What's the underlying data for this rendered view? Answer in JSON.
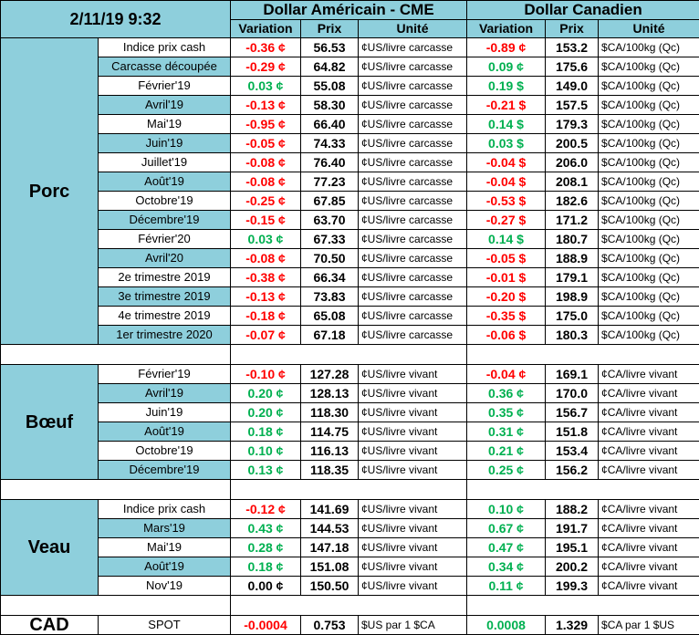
{
  "header": {
    "datetime": "2/11/19 9:32",
    "usd_title": "Dollar Américain - CME",
    "cad_title": "Dollar Canadien",
    "col_variation": "Variation",
    "col_prix": "Prix",
    "col_unite": "Unité"
  },
  "groups": [
    {
      "name": "Porc",
      "rows": [
        {
          "label": "Indice prix cash",
          "usd_var": "-0.36 ¢",
          "usd_var_color": "red",
          "usd_prix": "56.53",
          "usd_unit": "¢US/livre carcasse",
          "cad_var": "-0.89 ¢",
          "cad_var_color": "red",
          "cad_prix": "153.2",
          "cad_unit": "$CA/100kg (Qc)"
        },
        {
          "label": "Carcasse découpée",
          "usd_var": "-0.29 ¢",
          "usd_var_color": "red",
          "usd_prix": "64.82",
          "usd_unit": "¢US/livre carcasse",
          "cad_var": "0.09 ¢",
          "cad_var_color": "green",
          "cad_prix": "175.6",
          "cad_unit": "$CA/100kg (Qc)"
        },
        {
          "label": "Février'19",
          "usd_var": "0.03 ¢",
          "usd_var_color": "green",
          "usd_prix": "55.08",
          "usd_unit": "¢US/livre carcasse",
          "cad_var": "0.19 $",
          "cad_var_color": "green",
          "cad_prix": "149.0",
          "cad_unit": "$CA/100kg (Qc)"
        },
        {
          "label": "Avril'19",
          "usd_var": "-0.13 ¢",
          "usd_var_color": "red",
          "usd_prix": "58.30",
          "usd_unit": "¢US/livre carcasse",
          "cad_var": "-0.21 $",
          "cad_var_color": "red",
          "cad_prix": "157.5",
          "cad_unit": "$CA/100kg (Qc)"
        },
        {
          "label": "Mai'19",
          "usd_var": "-0.95 ¢",
          "usd_var_color": "red",
          "usd_prix": "66.40",
          "usd_unit": "¢US/livre carcasse",
          "cad_var": "0.14 $",
          "cad_var_color": "green",
          "cad_prix": "179.3",
          "cad_unit": "$CA/100kg (Qc)"
        },
        {
          "label": "Juin'19",
          "usd_var": "-0.05 ¢",
          "usd_var_color": "red",
          "usd_prix": "74.33",
          "usd_unit": "¢US/livre carcasse",
          "cad_var": "0.03 $",
          "cad_var_color": "green",
          "cad_prix": "200.5",
          "cad_unit": "$CA/100kg (Qc)"
        },
        {
          "label": "Juillet'19",
          "usd_var": "-0.08 ¢",
          "usd_var_color": "red",
          "usd_prix": "76.40",
          "usd_unit": "¢US/livre carcasse",
          "cad_var": "-0.04 $",
          "cad_var_color": "red",
          "cad_prix": "206.0",
          "cad_unit": "$CA/100kg (Qc)"
        },
        {
          "label": "Août'19",
          "usd_var": "-0.08 ¢",
          "usd_var_color": "red",
          "usd_prix": "77.23",
          "usd_unit": "¢US/livre carcasse",
          "cad_var": "-0.04 $",
          "cad_var_color": "red",
          "cad_prix": "208.1",
          "cad_unit": "$CA/100kg (Qc)"
        },
        {
          "label": "Octobre'19",
          "usd_var": "-0.25 ¢",
          "usd_var_color": "red",
          "usd_prix": "67.85",
          "usd_unit": "¢US/livre carcasse",
          "cad_var": "-0.53 $",
          "cad_var_color": "red",
          "cad_prix": "182.6",
          "cad_unit": "$CA/100kg (Qc)"
        },
        {
          "label": "Décembre'19",
          "usd_var": "-0.15 ¢",
          "usd_var_color": "red",
          "usd_prix": "63.70",
          "usd_unit": "¢US/livre carcasse",
          "cad_var": "-0.27 $",
          "cad_var_color": "red",
          "cad_prix": "171.2",
          "cad_unit": "$CA/100kg (Qc)"
        },
        {
          "label": "Février'20",
          "usd_var": "0.03 ¢",
          "usd_var_color": "green",
          "usd_prix": "67.33",
          "usd_unit": "¢US/livre carcasse",
          "cad_var": "0.14 $",
          "cad_var_color": "green",
          "cad_prix": "180.7",
          "cad_unit": "$CA/100kg (Qc)"
        },
        {
          "label": "Avril'20",
          "usd_var": "-0.08 ¢",
          "usd_var_color": "red",
          "usd_prix": "70.50",
          "usd_unit": "¢US/livre carcasse",
          "cad_var": "-0.05 $",
          "cad_var_color": "red",
          "cad_prix": "188.9",
          "cad_unit": "$CA/100kg (Qc)"
        },
        {
          "label": "2e trimestre 2019",
          "usd_var": "-0.38 ¢",
          "usd_var_color": "red",
          "usd_prix": "66.34",
          "usd_unit": "¢US/livre carcasse",
          "cad_var": "-0.01 $",
          "cad_var_color": "red",
          "cad_prix": "179.1",
          "cad_unit": "$CA/100kg (Qc)"
        },
        {
          "label": "3e trimestre 2019",
          "usd_var": "-0.13 ¢",
          "usd_var_color": "red",
          "usd_prix": "73.83",
          "usd_unit": "¢US/livre carcasse",
          "cad_var": "-0.20 $",
          "cad_var_color": "red",
          "cad_prix": "198.9",
          "cad_unit": "$CA/100kg (Qc)"
        },
        {
          "label": "4e trimestre 2019",
          "usd_var": "-0.18 ¢",
          "usd_var_color": "red",
          "usd_prix": "65.08",
          "usd_unit": "¢US/livre carcasse",
          "cad_var": "-0.35 $",
          "cad_var_color": "red",
          "cad_prix": "175.0",
          "cad_unit": "$CA/100kg (Qc)"
        },
        {
          "label": "1er trimestre 2020",
          "usd_var": "-0.07 ¢",
          "usd_var_color": "red",
          "usd_prix": "67.18",
          "usd_unit": "¢US/livre carcasse",
          "cad_var": "-0.06 $",
          "cad_var_color": "red",
          "cad_prix": "180.3",
          "cad_unit": "$CA/100kg (Qc)"
        }
      ]
    },
    {
      "name": "Bœuf",
      "rows": [
        {
          "label": "Février'19",
          "usd_var": "-0.10 ¢",
          "usd_var_color": "red",
          "usd_prix": "127.28",
          "usd_unit": "¢US/livre vivant",
          "cad_var": "-0.04 ¢",
          "cad_var_color": "red",
          "cad_prix": "169.1",
          "cad_unit": "¢CA/livre vivant"
        },
        {
          "label": "Avril'19",
          "usd_var": "0.20 ¢",
          "usd_var_color": "green",
          "usd_prix": "128.13",
          "usd_unit": "¢US/livre vivant",
          "cad_var": "0.36 ¢",
          "cad_var_color": "green",
          "cad_prix": "170.0",
          "cad_unit": "¢CA/livre vivant"
        },
        {
          "label": "Juin'19",
          "usd_var": "0.20 ¢",
          "usd_var_color": "green",
          "usd_prix": "118.30",
          "usd_unit": "¢US/livre vivant",
          "cad_var": "0.35 ¢",
          "cad_var_color": "green",
          "cad_prix": "156.7",
          "cad_unit": "¢CA/livre vivant"
        },
        {
          "label": "Août'19",
          "usd_var": "0.18 ¢",
          "usd_var_color": "green",
          "usd_prix": "114.75",
          "usd_unit": "¢US/livre vivant",
          "cad_var": "0.31 ¢",
          "cad_var_color": "green",
          "cad_prix": "151.8",
          "cad_unit": "¢CA/livre vivant"
        },
        {
          "label": "Octobre'19",
          "usd_var": "0.10 ¢",
          "usd_var_color": "green",
          "usd_prix": "116.13",
          "usd_unit": "¢US/livre vivant",
          "cad_var": "0.21 ¢",
          "cad_var_color": "green",
          "cad_prix": "153.4",
          "cad_unit": "¢CA/livre vivant"
        },
        {
          "label": "Décembre'19",
          "usd_var": "0.13 ¢",
          "usd_var_color": "green",
          "usd_prix": "118.35",
          "usd_unit": "¢US/livre vivant",
          "cad_var": "0.25 ¢",
          "cad_var_color": "green",
          "cad_prix": "156.2",
          "cad_unit": "¢CA/livre vivant"
        }
      ]
    },
    {
      "name": "Veau",
      "rows": [
        {
          "label": "Indice prix cash",
          "usd_var": "-0.12 ¢",
          "usd_var_color": "red",
          "usd_prix": "141.69",
          "usd_unit": "¢US/livre vivant",
          "cad_var": "0.10 ¢",
          "cad_var_color": "green",
          "cad_prix": "188.2",
          "cad_unit": "¢CA/livre vivant"
        },
        {
          "label": "Mars'19",
          "usd_var": "0.43 ¢",
          "usd_var_color": "green",
          "usd_prix": "144.53",
          "usd_unit": "¢US/livre vivant",
          "cad_var": "0.67 ¢",
          "cad_var_color": "green",
          "cad_prix": "191.7",
          "cad_unit": "¢CA/livre vivant"
        },
        {
          "label": "Mai'19",
          "usd_var": "0.28 ¢",
          "usd_var_color": "green",
          "usd_prix": "147.18",
          "usd_unit": "¢US/livre vivant",
          "cad_var": "0.47 ¢",
          "cad_var_color": "green",
          "cad_prix": "195.1",
          "cad_unit": "¢CA/livre vivant"
        },
        {
          "label": "Août'19",
          "usd_var": "0.18 ¢",
          "usd_var_color": "green",
          "usd_prix": "151.08",
          "usd_unit": "¢US/livre vivant",
          "cad_var": "0.34 ¢",
          "cad_var_color": "green",
          "cad_prix": "200.2",
          "cad_unit": "¢CA/livre vivant"
        },
        {
          "label": "Nov'19",
          "usd_var": "0.00 ¢",
          "usd_var_color": "black",
          "usd_prix": "150.50",
          "usd_unit": "¢US/livre vivant",
          "cad_var": "0.11 ¢",
          "cad_var_color": "green",
          "cad_prix": "199.3",
          "cad_unit": "¢CA/livre vivant"
        }
      ]
    }
  ],
  "cad": {
    "name": "CAD",
    "label": "SPOT",
    "usd_var": "-0.0004",
    "usd_var_color": "red",
    "usd_prix": "0.753",
    "usd_unit": "$US par 1 $CA",
    "cad_var": "0.0008",
    "cad_var_color": "green",
    "cad_prix": "1.329",
    "cad_unit": "$CA par 1 $US"
  },
  "colors": {
    "header_bg": "#8ecfdc",
    "negative": "#ff0000",
    "positive": "#00b050",
    "neutral": "#000000"
  }
}
